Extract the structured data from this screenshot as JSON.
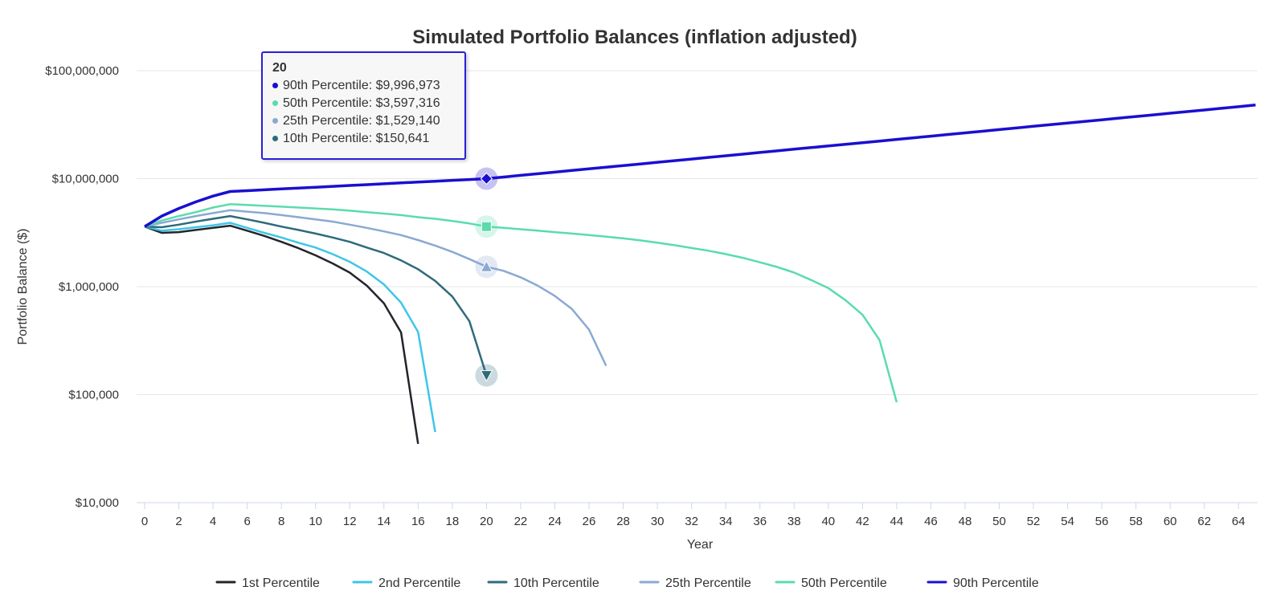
{
  "chart_data": {
    "type": "line",
    "title": "Simulated Portfolio Balances (inflation adjusted)",
    "xlabel": "Year",
    "ylabel": "Portfolio Balance ($)",
    "yscale": "log",
    "ylim": [
      10000,
      100000000
    ],
    "xlim": [
      0,
      65
    ],
    "yticks": [
      10000,
      100000,
      1000000,
      10000000,
      100000000
    ],
    "ytick_labels": [
      "$10,000",
      "$100,000",
      "$1,000,000",
      "$10,000,000",
      "$100,000,000"
    ],
    "xticks": [
      0,
      2,
      4,
      6,
      8,
      10,
      12,
      14,
      16,
      18,
      20,
      22,
      24,
      26,
      28,
      30,
      32,
      34,
      36,
      38,
      40,
      42,
      44,
      46,
      48,
      50,
      52,
      54,
      56,
      58,
      60,
      62,
      64
    ],
    "grid": true,
    "legend_position": "bottom",
    "series": [
      {
        "name": "1st Percentile",
        "color": "#22252b",
        "values": [
          3600000,
          3150000,
          3200000,
          3350000,
          3500000,
          3670000,
          3300000,
          2950000,
          2600000,
          2270000,
          1950000,
          1640000,
          1350000,
          1020000,
          700000,
          377000,
          35000
        ]
      },
      {
        "name": "2nd Percentile",
        "color": "#3ec6e6",
        "values": [
          3600000,
          3300000,
          3400000,
          3550000,
          3700000,
          3900000,
          3500000,
          3150000,
          2850000,
          2550000,
          2300000,
          2000000,
          1700000,
          1380000,
          1050000,
          710000,
          380000,
          45000
        ]
      },
      {
        "name": "10th Percentile",
        "color": "#2e6b7b",
        "values": [
          3600000,
          3550000,
          3750000,
          4000000,
          4250000,
          4500000,
          4200000,
          3900000,
          3600000,
          3350000,
          3100000,
          2850000,
          2600000,
          2300000,
          2050000,
          1750000,
          1450000,
          1130000,
          810000,
          480000,
          150641
        ]
      },
      {
        "name": "25th Percentile",
        "color": "#8aa9d2",
        "values": [
          3600000,
          3900000,
          4200000,
          4500000,
          4800000,
          5100000,
          4950000,
          4800000,
          4600000,
          4400000,
          4200000,
          4000000,
          3750000,
          3500000,
          3250000,
          3000000,
          2700000,
          2400000,
          2100000,
          1800000,
          1529140,
          1400000,
          1220000,
          1020000,
          820000,
          620000,
          400000,
          185000
        ]
      },
      {
        "name": "50th Percentile",
        "color": "#5adcac",
        "values": [
          3600000,
          4100000,
          4500000,
          4900000,
          5400000,
          5800000,
          5700000,
          5600000,
          5500000,
          5400000,
          5300000,
          5200000,
          5050000,
          4900000,
          4750000,
          4600000,
          4400000,
          4250000,
          4050000,
          3850000,
          3597316,
          3500000,
          3400000,
          3300000,
          3200000,
          3100000,
          3000000,
          2900000,
          2800000,
          2680000,
          2550000,
          2420000,
          2280000,
          2150000,
          2000000,
          1850000,
          1680000,
          1520000,
          1350000,
          1150000,
          970000,
          750000,
          550000,
          320000,
          85000
        ]
      },
      {
        "name": "90th Percentile",
        "color": "#1a0fd0",
        "values": [
          3600000,
          4500000,
          5300000,
          6100000,
          6900000,
          7600000,
          7740000,
          7880000,
          8030000,
          8180000,
          8330000,
          8480000,
          8640000,
          8800000,
          8960000,
          9130000,
          9300000,
          9470000,
          9640000,
          9820000,
          9996973,
          10350000,
          10720000,
          11100000,
          11490000,
          11900000,
          12320000,
          12760000,
          13210000,
          13680000,
          14170000,
          14670000,
          15190000,
          15730000,
          16290000,
          16870000,
          17470000,
          18090000,
          18730000,
          19390000,
          20080000,
          20790000,
          21530000,
          22290000,
          23080000,
          23900000,
          24750000,
          25630000,
          26540000,
          27480000,
          28460000,
          29470000,
          30510000,
          31600000,
          32720000,
          33880000,
          35080000,
          36330000,
          37620000,
          38950000,
          40330000,
          41760000,
          43250000,
          44780000,
          46370000,
          48020000
        ]
      }
    ],
    "hover": {
      "year": 20,
      "markers": [
        "diamond",
        "square",
        "triangle",
        "triangle-down"
      ]
    }
  },
  "tooltip": {
    "title": "20",
    "rows": [
      {
        "label": "90th Percentile: $9,996,973",
        "color": "#1a0fd0"
      },
      {
        "label": "50th Percentile: $3,597,316",
        "color": "#5adcac"
      },
      {
        "label": "25th Percentile: $1,529,140",
        "color": "#8aa9d2"
      },
      {
        "label": "10th Percentile: $150,641",
        "color": "#2e6b7b"
      }
    ]
  }
}
